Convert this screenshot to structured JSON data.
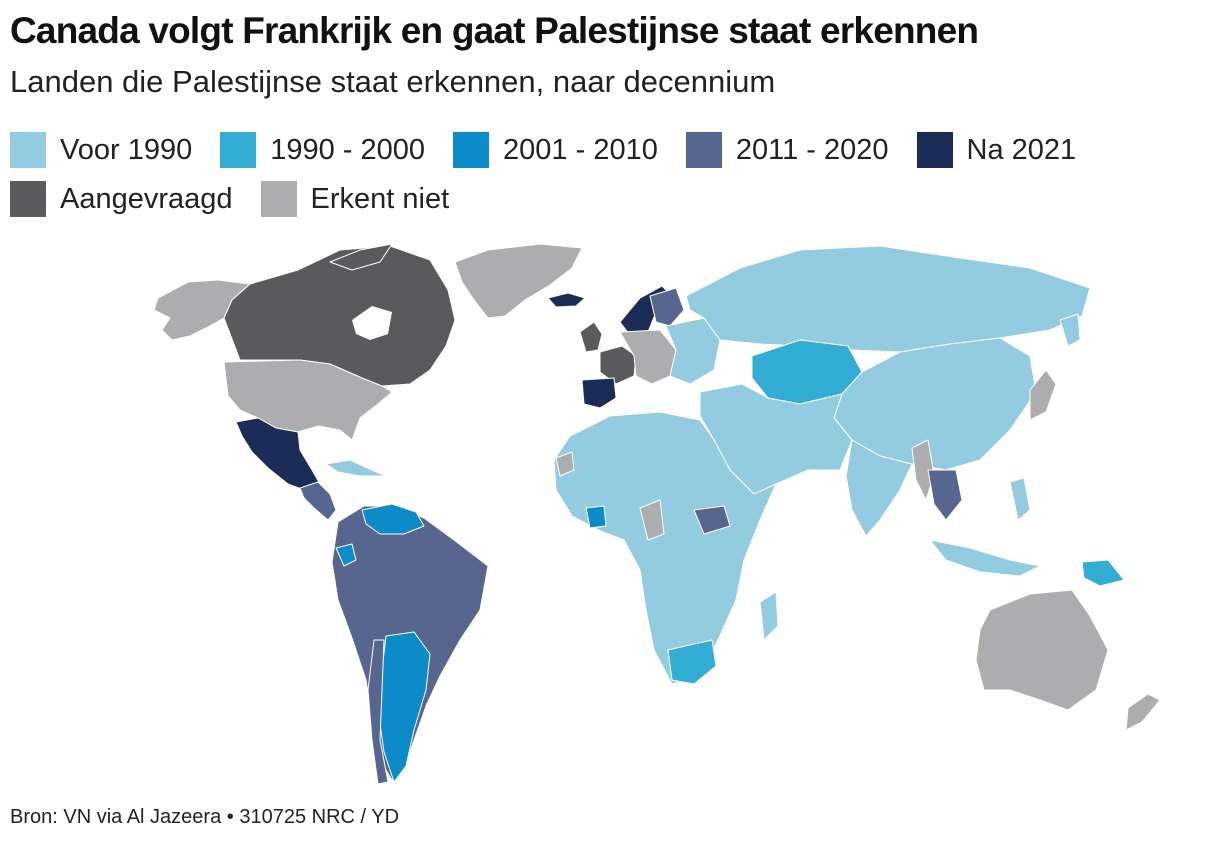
{
  "title": "Canada volgt Frankrijk en gaat Palestijnse staat erkennen",
  "subtitle": "Landen die Palestijnse staat erkennen, naar decennium",
  "legend": {
    "row1": [
      {
        "label": "Voor 1990",
        "color": "#93cce0"
      },
      {
        "label": "1990 - 2000",
        "color": "#33acd6"
      },
      {
        "label": "2001 - 2010",
        "color": "#0b8cc9"
      },
      {
        "label": "2011 - 2020",
        "color": "#57668f"
      },
      {
        "label": "Na 2021",
        "color": "#1b2d56"
      }
    ],
    "row2": [
      {
        "label": "Aangevraagd",
        "color": "#5a5a5d"
      },
      {
        "label": "Erkent niet",
        "color": "#adadaf"
      }
    ]
  },
  "source": "Bron: VN via Al Jazeera",
  "separator": "•",
  "credit": "310725 NRC / YD"
}
